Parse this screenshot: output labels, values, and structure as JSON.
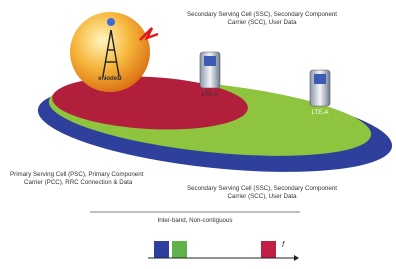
{
  "labels": {
    "scc_top": [
      "Secondary Serving Cell (SSC), Secondary Component",
      "Carrier (SCC), User Data"
    ],
    "enodeb": "eNodeB",
    "device_1": "LTE-A",
    "device_2": "LTE-A",
    "pcc": [
      "Primary Serving Cell (PSC), Primary Component",
      "Carrier (PCC), RRC Connection & Data"
    ],
    "scc_bottom": [
      "Secondary Serving Cell (SSC), Secondary Component",
      "Carrier (SCC), User Data"
    ],
    "band_note": "Inter-band, Non-contiguous",
    "freq_axis": "f"
  }
}
